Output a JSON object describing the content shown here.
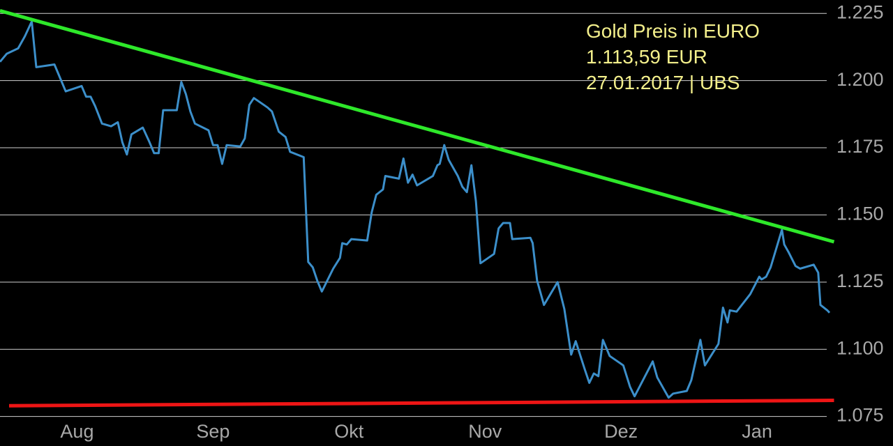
{
  "chart_data": {
    "type": "line",
    "title": "Gold Preis in EURO",
    "subtitle": "1.113,59 EUR",
    "annotation": "27.01.2017 | UBS",
    "background": "#000000",
    "grid": true,
    "grid_color": "#d0d0d0",
    "xlim": [
      0,
      197
    ],
    "ylim": [
      1064,
      1230
    ],
    "xticks": [
      {
        "value": 17,
        "label": "Aug"
      },
      {
        "value": 47,
        "label": "Sep"
      },
      {
        "value": 77,
        "label": "Okt"
      },
      {
        "value": 107,
        "label": "Nov"
      },
      {
        "value": 137,
        "label": "Dez"
      },
      {
        "value": 167,
        "label": "Jan"
      }
    ],
    "yticks": [
      {
        "value": 1075,
        "label": "1.075"
      },
      {
        "value": 1100,
        "label": "1.100"
      },
      {
        "value": 1125,
        "label": "1.125"
      },
      {
        "value": 1150,
        "label": "1.150"
      },
      {
        "value": 1175,
        "label": "1.175"
      },
      {
        "value": 1200,
        "label": "1.200"
      },
      {
        "value": 1225,
        "label": "1.225"
      }
    ],
    "series": [
      {
        "color": "#3c8fca",
        "x": [
          0,
          1.5,
          4,
          5.5,
          7,
          8,
          12,
          14.5,
          18,
          19,
          20,
          21,
          22.5,
          24.5,
          26,
          27,
          28,
          29,
          31.5,
          33,
          34,
          35,
          36,
          39,
          40,
          41,
          42,
          43,
          46,
          47,
          48,
          49,
          50,
          53,
          54,
          55,
          56,
          59,
          60,
          61.5,
          63,
          64,
          67,
          68,
          69,
          70,
          71,
          73.5,
          75,
          75.5,
          76.5,
          77.5,
          81,
          82,
          83,
          84.5,
          85,
          88,
          89,
          90,
          91,
          92,
          95.5,
          96.5,
          97,
          98,
          99,
          101,
          102,
          103,
          104,
          105,
          106,
          109,
          110,
          111,
          112.5,
          113,
          117,
          117.5,
          118.5,
          120,
          123,
          124.5,
          126,
          127,
          129,
          130,
          131,
          132,
          133,
          134.5,
          137.5,
          139,
          140,
          144,
          145,
          147.5,
          148.5,
          151.5,
          152.5,
          154.5,
          155.5,
          158.5,
          159.5,
          160.5,
          161,
          162.5,
          165.5,
          167.5,
          168,
          169,
          170,
          172.5,
          173,
          174,
          175.5,
          176.5,
          179.5,
          180.5,
          181,
          182.5,
          183
        ],
        "values": [
          1207,
          1210,
          1212,
          1216.5,
          1222,
          1205,
          1206,
          1196,
          1198,
          1194,
          1194,
          1190.5,
          1184,
          1183,
          1184.5,
          1177,
          1172.5,
          1180,
          1182.5,
          1177,
          1173,
          1173,
          1189,
          1189,
          1199.5,
          1195,
          1188.5,
          1184,
          1181.5,
          1176,
          1176,
          1169,
          1176,
          1175.5,
          1178.5,
          1191,
          1193.5,
          1190,
          1188.5,
          1181,
          1179,
          1173.5,
          1171.5,
          1132.5,
          1130.5,
          1125.5,
          1121.5,
          1130,
          1134,
          1139.5,
          1139,
          1141,
          1140.5,
          1151,
          1157.5,
          1159.5,
          1164.5,
          1163.5,
          1171,
          1162,
          1165,
          1161,
          1164.5,
          1168.5,
          1169,
          1176,
          1170.5,
          1164.5,
          1160.5,
          1158.5,
          1168.5,
          1155,
          1132,
          1135.5,
          1145,
          1147,
          1147,
          1141,
          1141.5,
          1139.5,
          1125.5,
          1116.5,
          1125,
          1115,
          1098,
          1103,
          1092.5,
          1087.5,
          1091,
          1090,
          1103.5,
          1097.5,
          1094,
          1086,
          1082.5,
          1095.5,
          1089.5,
          1082,
          1083.5,
          1084.5,
          1088.5,
          1103.5,
          1094,
          1102,
          1115.5,
          1110,
          1114.5,
          1114,
          1120.5,
          1127,
          1126,
          1127,
          1130.5,
          1144.5,
          1139,
          1136,
          1131,
          1130,
          1131.5,
          1128.5,
          1116.5,
          1114.5,
          1113.59
        ]
      }
    ],
    "trendlines": [
      {
        "color": "#2ee82a",
        "x": [
          0,
          184
        ],
        "values": [
          1226,
          1140
        ]
      },
      {
        "color": "#ee1515",
        "x": [
          2,
          184
        ],
        "values": [
          1079,
          1081
        ]
      }
    ]
  }
}
